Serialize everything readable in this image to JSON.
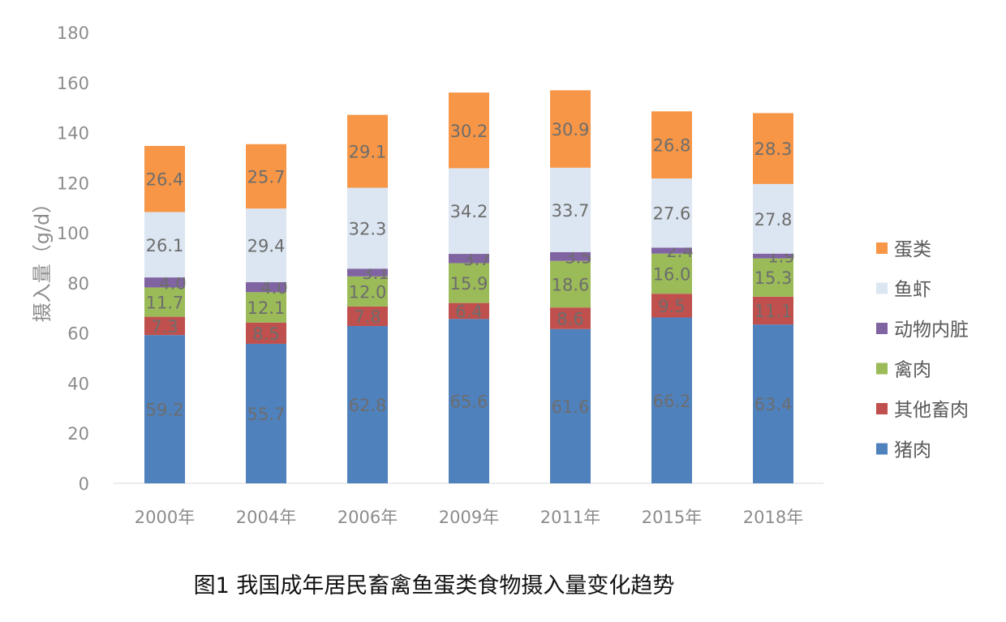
{
  "chart_data": {
    "type": "bar",
    "stacked": true,
    "title": "图1  我国成年居民畜禽鱼蛋类食物摄入量变化趋势",
    "xlabel": "",
    "ylabel": "摄入量（g/d）",
    "ylim": [
      0,
      180
    ],
    "yticks": [
      0,
      20,
      40,
      60,
      80,
      100,
      120,
      140,
      160,
      180
    ],
    "grid": false,
    "legend_position": "right",
    "categories": [
      "2000年",
      "2004年",
      "2006年",
      "2009年",
      "2011年",
      "2015年",
      "2018年"
    ],
    "series": [
      {
        "name": "猪肉",
        "color": "#4f81bd",
        "values": [
          59.2,
          55.7,
          62.8,
          65.6,
          61.6,
          66.2,
          63.4
        ]
      },
      {
        "name": "其他畜肉",
        "color": "#c0504d",
        "values": [
          7.3,
          8.5,
          7.8,
          6.4,
          8.6,
          9.5,
          11.1
        ]
      },
      {
        "name": "禽肉",
        "color": "#9bbb59",
        "values": [
          11.7,
          12.1,
          12.0,
          15.9,
          18.6,
          16.0,
          15.3
        ]
      },
      {
        "name": "动物内脏",
        "color": "#8064a2",
        "values": [
          4.0,
          4.0,
          3.1,
          3.7,
          3.5,
          2.4,
          1.9
        ]
      },
      {
        "name": "鱼虾",
        "color": "#dce6f2",
        "values": [
          26.1,
          29.4,
          32.3,
          34.2,
          33.7,
          27.6,
          27.8
        ]
      },
      {
        "name": "蛋类",
        "color": "#f79646",
        "values": [
          26.4,
          25.7,
          29.1,
          30.2,
          30.9,
          26.8,
          28.3
        ]
      }
    ]
  }
}
